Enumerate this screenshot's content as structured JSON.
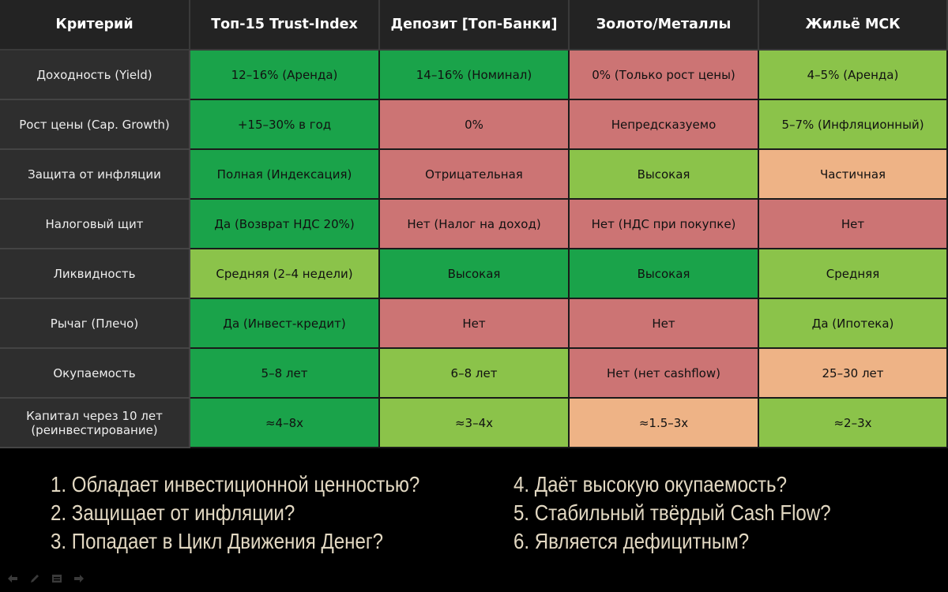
{
  "table": {
    "headers": [
      "Критерий",
      "Топ-15 Trust-Index",
      "Депозит [Топ-Банки]",
      "Золото/Металлы",
      "Жильё МСК"
    ],
    "rows": [
      {
        "criterion": "Доходность (Yield)",
        "values": [
          "12–16% (Аренда)",
          "14–16% (Номинал)",
          "0% (Только рост цены)",
          "4–5% (Аренда)"
        ],
        "ratings": [
          "dark-green",
          "dark-green",
          "red",
          "light-green"
        ]
      },
      {
        "criterion": "Рост цены (Cap. Growth)",
        "values": [
          "+15–30% в год",
          "0%",
          "Непредсказуемо",
          "5–7% (Инфляционный)"
        ],
        "ratings": [
          "dark-green",
          "red",
          "red",
          "light-green"
        ]
      },
      {
        "criterion": "Защита от инфляции",
        "values": [
          "Полная (Индексация)",
          "Отрицательная",
          "Высокая",
          "Частичная"
        ],
        "ratings": [
          "dark-green",
          "red",
          "light-green",
          "orange"
        ]
      },
      {
        "criterion": "Налоговый щит",
        "values": [
          "Да (Возврат НДС 20%)",
          "Нет (Налог на доход)",
          "Нет (НДС при покупке)",
          "Нет"
        ],
        "ratings": [
          "dark-green",
          "red",
          "red",
          "red"
        ]
      },
      {
        "criterion": "Ликвидность",
        "values": [
          "Средняя (2–4 недели)",
          "Высокая",
          "Высокая",
          "Средняя"
        ],
        "ratings": [
          "light-green",
          "dark-green",
          "dark-green",
          "light-green"
        ]
      },
      {
        "criterion": "Рычаг (Плечо)",
        "values": [
          "Да (Инвест-кредит)",
          "Нет",
          "Нет",
          "Да (Ипотека)"
        ],
        "ratings": [
          "dark-green",
          "red",
          "red",
          "light-green"
        ]
      },
      {
        "criterion": "Окупаемость",
        "values": [
          "5–8 лет",
          "6–8 лет",
          "Нет (нет cashflow)",
          "25–30 лет"
        ],
        "ratings": [
          "dark-green",
          "light-green",
          "red",
          "orange"
        ]
      },
      {
        "criterion": "Капитал через 10 лет (реинвестирование)",
        "values": [
          "≈4–8x",
          "≈3–4x",
          "≈1.5–3x",
          "≈2–3x"
        ],
        "ratings": [
          "dark-green",
          "light-green",
          "orange",
          "light-green"
        ]
      }
    ]
  },
  "colors": {
    "dark-green": "#1aa34a",
    "light-green": "#8bc34a",
    "red": "#cc7474",
    "orange": "#eeb386",
    "question_text": "#e2d8c2"
  },
  "questions": {
    "left": [
      "1. Обладает инвестиционной ценностью?",
      "2. Защищает от инфляции?",
      "3. Попадает в Цикл Движения Денег?"
    ],
    "right": [
      "4. Даёт высокую окупаемость?",
      "5. Стабильный твёрдый Cash Flow?",
      "6. Является дефицитным?"
    ]
  },
  "toolbar": {
    "icons": [
      "back-arrow-icon",
      "pen-icon",
      "slides-menu-icon",
      "forward-arrow-icon"
    ]
  }
}
